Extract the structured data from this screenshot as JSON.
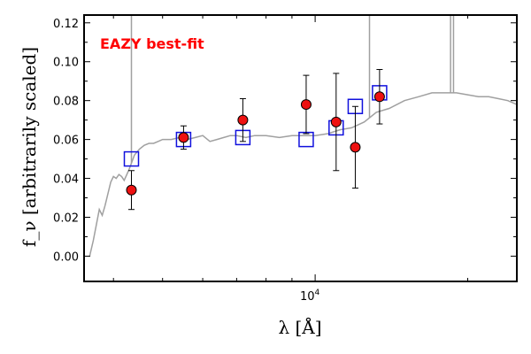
{
  "chart_data": {
    "type": "scatter",
    "title": "",
    "xlabel": "λ [Å]",
    "ylabel": "f_ν [arbitrarily scaled]",
    "x_scale": "log",
    "xlim": [
      3500,
      25000
    ],
    "ylim": [
      -0.013,
      0.124
    ],
    "x_ticks": [
      {
        "value": 10000,
        "label": "10^4"
      }
    ],
    "y_ticks": [
      {
        "value": 0.0,
        "label": "0.00"
      },
      {
        "value": 0.02,
        "label": "0.02"
      },
      {
        "value": 0.04,
        "label": "0.04"
      },
      {
        "value": 0.06,
        "label": "0.06"
      },
      {
        "value": 0.08,
        "label": "0.08"
      },
      {
        "value": 0.1,
        "label": "0.10"
      },
      {
        "value": 0.12,
        "label": "0.12"
      }
    ],
    "grid": false,
    "annotation": {
      "text": "EAZY best-fit",
      "color": "#ff0000"
    },
    "colors": {
      "template": "#a0a0a0",
      "model_points": "#1010dd",
      "observed_fill": "#ee1111",
      "observed_edge": "#000000",
      "errorbar": "#000000"
    },
    "series": [
      {
        "kind": "template_line",
        "x": [
          3590,
          3650,
          3700,
          3750,
          3800,
          3850,
          3900,
          3950,
          4000,
          4050,
          4100,
          4150,
          4200,
          4250,
          4300,
          4400,
          4500,
          4600,
          4700,
          4800,
          4900,
          5000,
          5200,
          5400,
          5600,
          5800,
          6000,
          6200,
          6400,
          6600,
          6800,
          7000,
          7300,
          7600,
          8000,
          8500,
          9000,
          9500,
          10000,
          10600,
          11200,
          11800,
          12500,
          13200,
          14000,
          15000,
          16000,
          17000,
          18000,
          19000,
          20000,
          21000,
          22000,
          23000,
          24000,
          25000
        ],
        "y": [
          0.0,
          0.008,
          0.016,
          0.024,
          0.021,
          0.026,
          0.032,
          0.038,
          0.041,
          0.04,
          0.042,
          0.041,
          0.039,
          0.042,
          0.045,
          0.052,
          0.055,
          0.057,
          0.058,
          0.058,
          0.059,
          0.06,
          0.06,
          0.061,
          0.06,
          0.061,
          0.062,
          0.059,
          0.06,
          0.061,
          0.062,
          0.062,
          0.061,
          0.062,
          0.062,
          0.061,
          0.062,
          0.062,
          0.062,
          0.063,
          0.065,
          0.066,
          0.069,
          0.074,
          0.076,
          0.08,
          0.082,
          0.084,
          0.084,
          0.084,
          0.083,
          0.082,
          0.082,
          0.081,
          0.08,
          0.078
        ]
      },
      {
        "kind": "template_spikes",
        "x": [
          4340,
          12800,
          18500,
          18750
        ],
        "y_top": [
          0.124,
          0.124,
          0.124,
          0.124
        ]
      },
      {
        "kind": "model",
        "x": [
          4340,
          5500,
          7200,
          9600,
          11000,
          12000,
          13400
        ],
        "y": [
          0.05,
          0.06,
          0.061,
          0.06,
          0.066,
          0.077,
          0.084
        ]
      },
      {
        "kind": "observed",
        "x": [
          4340,
          5500,
          7200,
          9600,
          11000,
          12000,
          13400
        ],
        "y": [
          0.034,
          0.061,
          0.07,
          0.078,
          0.069,
          0.056,
          0.082
        ],
        "yerr": [
          0.01,
          0.006,
          0.011,
          0.015,
          0.025,
          0.021,
          0.014
        ]
      }
    ]
  }
}
